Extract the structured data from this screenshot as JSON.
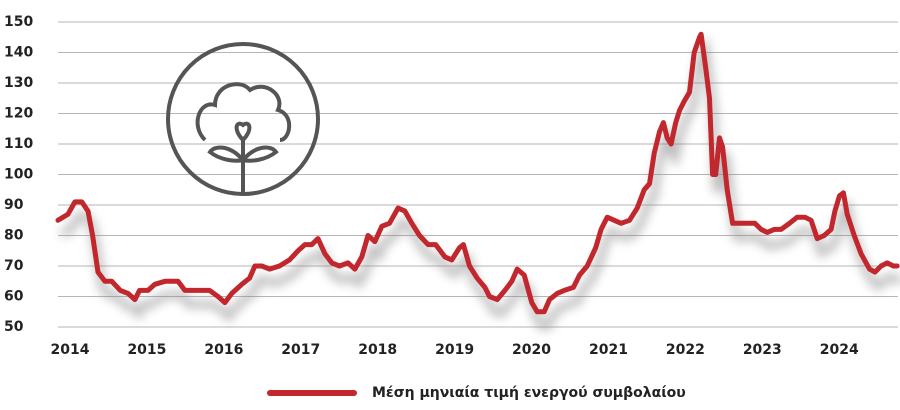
{
  "chart_data": {
    "type": "line",
    "x": [
      2014.0,
      2014.13,
      2014.22,
      2014.31,
      2014.39,
      2014.45,
      2014.52,
      2014.61,
      2014.7,
      2014.81,
      2014.91,
      2015.0,
      2015.06,
      2015.17,
      2015.26,
      2015.39,
      2015.48,
      2015.56,
      2015.65,
      2015.78,
      2015.97,
      2016.08,
      2016.17,
      2016.26,
      2016.39,
      2016.49,
      2016.56,
      2016.65,
      2016.75,
      2016.88,
      2017.01,
      2017.12,
      2017.21,
      2017.3,
      2017.38,
      2017.47,
      2017.56,
      2017.66,
      2017.77,
      2017.86,
      2017.95,
      2018.03,
      2018.12,
      2018.21,
      2018.31,
      2018.42,
      2018.51,
      2018.6,
      2018.7,
      2018.81,
      2018.91,
      2019.03,
      2019.12,
      2019.22,
      2019.27,
      2019.35,
      2019.45,
      2019.55,
      2019.61,
      2019.71,
      2019.81,
      2019.9,
      2019.97,
      2020.06,
      2020.16,
      2020.23,
      2020.32,
      2020.39,
      2020.49,
      2020.58,
      2020.7,
      2020.78,
      2020.88,
      2020.99,
      2021.06,
      2021.14,
      2021.23,
      2021.32,
      2021.43,
      2021.53,
      2021.62,
      2021.69,
      2021.75,
      2021.82,
      2021.87,
      2021.92,
      2021.97,
      2022.03,
      2022.08,
      2022.14,
      2022.21,
      2022.27,
      2022.34,
      2022.36,
      2022.42,
      2022.47,
      2022.51,
      2022.55,
      2022.6,
      2022.64,
      2022.7,
      2022.77,
      2022.86,
      2022.96,
      2023.06,
      2023.14,
      2023.22,
      2023.31,
      2023.4,
      2023.51,
      2023.61,
      2023.71,
      2023.79,
      2023.87,
      2023.96,
      2024.05,
      2024.1,
      2024.16,
      2024.21,
      2024.26,
      2024.35,
      2024.44,
      2024.55,
      2024.62,
      2024.7,
      2024.78,
      2024.86,
      2024.91
    ],
    "series": [
      {
        "name": "Μέση μηνιαία τιμή ενεργού συμβολαίου",
        "color": "#c1272d",
        "values": [
          85,
          87,
          91,
          91,
          88,
          80,
          68,
          65,
          65,
          62,
          61,
          59,
          62,
          62,
          64,
          65,
          65,
          65,
          62,
          62,
          62,
          60,
          58,
          61,
          64,
          66,
          70,
          70,
          69,
          70,
          72,
          75,
          77,
          77,
          79,
          74,
          71,
          70,
          71,
          69,
          73,
          80,
          78,
          83,
          84,
          89,
          88,
          84,
          80,
          77,
          77,
          73,
          72,
          76,
          77,
          70,
          66,
          63,
          60,
          59,
          62,
          65,
          69,
          67,
          58,
          55,
          55,
          59,
          61,
          62,
          63,
          67,
          70,
          76,
          82,
          86,
          85,
          84,
          85,
          89,
          95,
          97,
          107,
          114,
          117,
          112,
          110,
          117,
          121,
          124,
          127,
          140,
          145,
          146,
          135,
          125,
          100,
          100,
          112,
          109,
          95,
          84,
          84,
          84,
          84,
          82,
          81,
          82,
          82,
          84,
          86,
          86,
          85,
          79,
          80,
          82,
          88,
          93,
          94,
          87,
          80,
          74,
          69,
          68,
          70,
          71,
          70,
          70
        ]
      }
    ],
    "xlim": [
      2014,
      2024.92
    ],
    "xticks": [
      2014,
      2015,
      2016,
      2017,
      2018,
      2019,
      2020,
      2021,
      2022,
      2023,
      2024
    ],
    "ylim": [
      50,
      150
    ],
    "yticks": [
      50,
      60,
      70,
      80,
      90,
      100,
      110,
      120,
      130,
      140,
      150
    ],
    "grid": true,
    "legend": "bottom"
  }
}
